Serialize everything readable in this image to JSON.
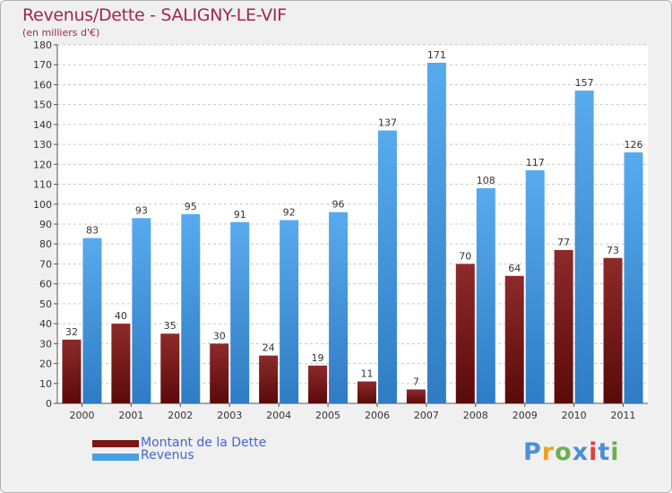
{
  "chart_data": {
    "type": "bar",
    "title": "Revenus/Dette - SALIGNY-LE-VIF",
    "subtitle": "(en milliers d'€)",
    "categories": [
      "2000",
      "2001",
      "2002",
      "2003",
      "2004",
      "2005",
      "2006",
      "2007",
      "2008",
      "2009",
      "2010",
      "2011"
    ],
    "series": [
      {
        "name": "Montant de la Dette",
        "color": "#7a1515",
        "values": [
          32,
          40,
          35,
          30,
          24,
          19,
          11,
          7,
          70,
          64,
          77,
          73
        ]
      },
      {
        "name": "Revenus",
        "color": "#4a9fe0",
        "values": [
          83,
          93,
          95,
          91,
          92,
          96,
          137,
          171,
          108,
          117,
          157,
          126
        ]
      }
    ],
    "ylim": [
      0,
      180
    ],
    "ytick_step": 10,
    "grid": true,
    "legend": "bottom-left"
  },
  "logo": {
    "text": "Proxiti",
    "colors": [
      "#4a90d9",
      "#f0a020",
      "#6ab04c",
      "#4a90d9",
      "#e04040",
      "#4a90d9",
      "#6ab04c"
    ]
  }
}
